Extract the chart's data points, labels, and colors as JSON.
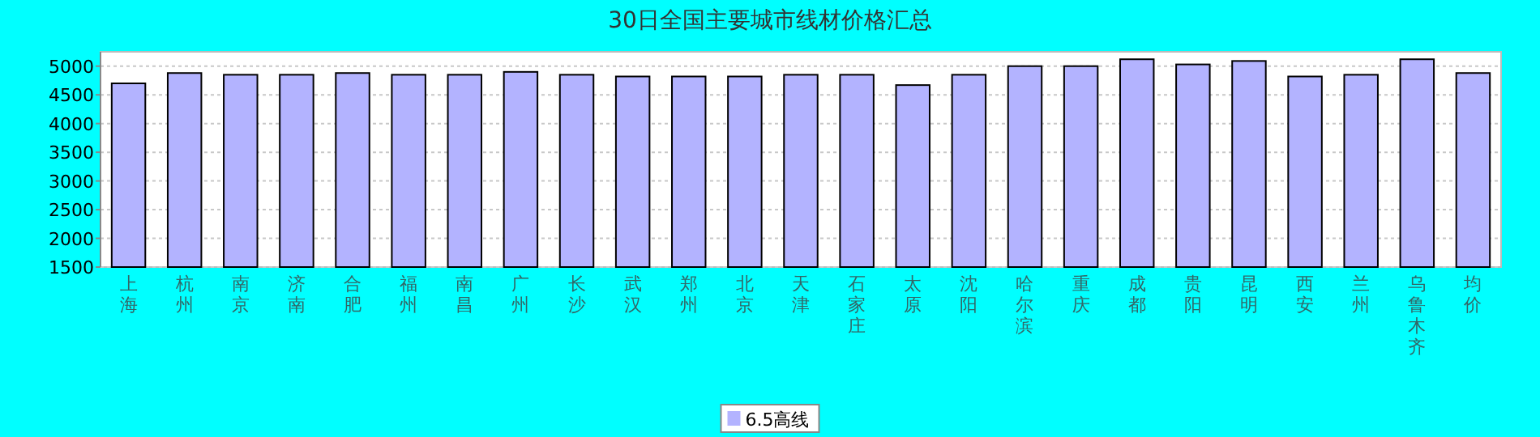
{
  "chart_data": {
    "type": "bar",
    "title": "30日全国主要城市线材价格汇总",
    "categories": [
      "上海",
      "杭州",
      "南京",
      "济南",
      "合肥",
      "福州",
      "南昌",
      "广州",
      "长沙",
      "武汉",
      "郑州",
      "北京",
      "天津",
      "石家庄",
      "太原",
      "沈阳",
      "哈尔滨",
      "重庆",
      "成都",
      "贵阳",
      "昆明",
      "西安",
      "兰州",
      "乌鲁木齐",
      "均价"
    ],
    "series": [
      {
        "name": "6.5高线",
        "color": "#b3b3ff",
        "values": [
          4700,
          4880,
          4850,
          4850,
          4880,
          4850,
          4850,
          4900,
          4850,
          4820,
          4820,
          4820,
          4850,
          4850,
          4670,
          4850,
          5000,
          5000,
          5120,
          5030,
          5090,
          4820,
          4850,
          5120,
          4880
        ]
      }
    ],
    "ylim": [
      1500,
      5250
    ],
    "yticks": [
      1500,
      2000,
      2500,
      3000,
      3500,
      4000,
      4500,
      5000
    ],
    "grid": "y",
    "legend": "bottom"
  }
}
